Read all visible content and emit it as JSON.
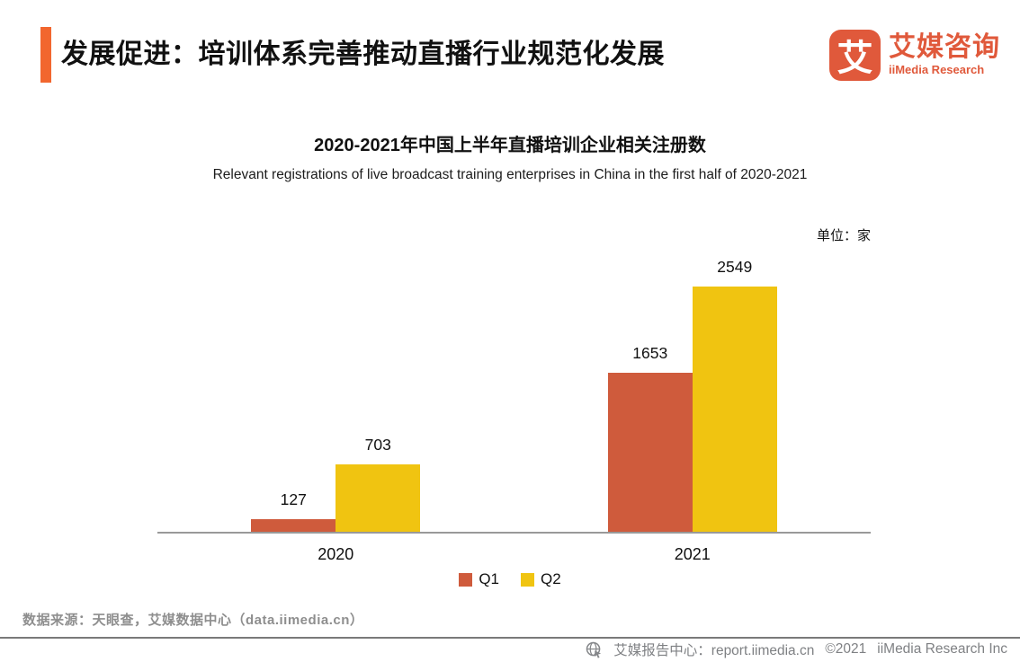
{
  "header": {
    "title": "发展促进：培训体系完善推动直播行业规范化发展",
    "accent_color": "#F2662E",
    "logo": {
      "icon_char": "艾",
      "brand_cn": "艾媒咨询",
      "brand_en": "iiMedia Research",
      "color": "#E0593B"
    }
  },
  "chart": {
    "title": "2020-2021年中国上半年直播培训企业相关注册数",
    "subtitle": "Relevant registrations of live broadcast training enterprises in China in the first half of 2020-2021",
    "unit_label": "单位：家"
  },
  "chart_data": {
    "type": "bar",
    "categories": [
      "2020",
      "2021"
    ],
    "series": [
      {
        "name": "Q1",
        "values": [
          127,
          1653
        ],
        "color": "#CF5B3C"
      },
      {
        "name": "Q2",
        "values": [
          703,
          2549
        ],
        "color": "#F0C411"
      }
    ],
    "title": "2020-2021年中国上半年直播培训企业相关注册数",
    "xlabel": "",
    "ylabel": "单位：家",
    "ylim": [
      0,
      2800
    ],
    "grid": false,
    "legend_position": "bottom",
    "value_labels": true,
    "axis_line_color": "#999999"
  },
  "source": {
    "text": "数据来源：天眼查，艾媒数据中心（data.iimedia.cn）"
  },
  "footer": {
    "report_center": "艾媒报告中心：report.iimedia.cn",
    "copyright": "©2021",
    "company": "iiMedia Research Inc"
  }
}
